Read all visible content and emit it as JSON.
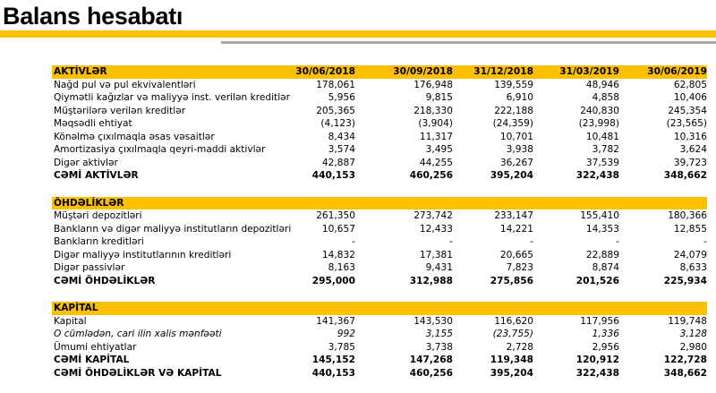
{
  "title": "Balans hesabatı",
  "colors": {
    "accent": "#fcc000",
    "rule": "#a6a6a6"
  },
  "columns": [
    "30/06/2018",
    "30/09/2018",
    "31/12/2018",
    "31/03/2019",
    "30/06/2019"
  ],
  "sections": [
    {
      "header": "AKTİVLƏR",
      "show_dates": true,
      "rows": [
        {
          "label": "Nağd pul və pul ekvivalentləri",
          "values": [
            "178,061",
            "176,948",
            "139,559",
            "48,946",
            "62,805"
          ]
        },
        {
          "label": "Qiymətli kağızlar və maliyyə inst. verilən kreditlər",
          "values": [
            "5,956",
            "9,815",
            "6,910",
            "4,858",
            "10,406"
          ]
        },
        {
          "label": "Müştərilərə verilən kreditlər",
          "values": [
            "205,365",
            "218,330",
            "222,188",
            "240,830",
            "245,354"
          ]
        },
        {
          "label": "Məqsədli ehtiyat",
          "values": [
            "(4,123)",
            "(3,904)",
            "(24,359)",
            "(23,998)",
            "(23,565)"
          ]
        },
        {
          "label": "Könəlmə çıxılmaqla əsas vəsaitlər",
          "values": [
            "8,434",
            "11,317",
            "10,701",
            "10,481",
            "10,316"
          ]
        },
        {
          "label": "Amortizasiya çıxılmaqla qeyri-maddi aktivlər",
          "values": [
            "3,574",
            "3,495",
            "3,938",
            "3,782",
            "3,624"
          ]
        },
        {
          "label": "Digər aktivlər",
          "values": [
            "42,887",
            "44,255",
            "36,267",
            "37,539",
            "39,723"
          ]
        },
        {
          "label": "CƏMİ AKTİVLƏR",
          "values": [
            "440,153",
            "460,256",
            "395,204",
            "322,438",
            "348,662"
          ],
          "style": "bold"
        }
      ]
    },
    {
      "header": "ÖHDƏLİKLƏR",
      "rows": [
        {
          "label": "Müştəri depozitləri",
          "values": [
            "261,350",
            "273,742",
            "233,147",
            "155,410",
            "180,366"
          ]
        },
        {
          "label": "Bankların və digər maliyyə institutların depozitləri",
          "values": [
            "10,657",
            "12,433",
            "14,221",
            "14,353",
            "12,855"
          ]
        },
        {
          "label": "Bankların kreditləri",
          "values": [
            "-",
            "-",
            "-",
            "-",
            "-"
          ]
        },
        {
          "label": "Digər maliyyə institutlarının kreditləri",
          "values": [
            "14,832",
            "17,381",
            "20,665",
            "22,889",
            "24,079"
          ]
        },
        {
          "label": "Digər passivlər",
          "values": [
            "8,163",
            "9,431",
            "7,823",
            "8,874",
            "8,633"
          ]
        },
        {
          "label": "CƏMİ ÖHDƏLİKLƏR",
          "values": [
            "295,000",
            "312,988",
            "275,856",
            "201,526",
            "225,934"
          ],
          "style": "bold"
        }
      ]
    },
    {
      "header": "KAPİTAL",
      "rows": [
        {
          "label": "Kapital",
          "values": [
            "141,367",
            "143,530",
            "116,620",
            "117,956",
            "119,748"
          ]
        },
        {
          "label": "O cümlədən, cari ilin xalis mənfəəti",
          "values": [
            "992",
            "3,155",
            "(23,755)",
            "1,336",
            "3,128"
          ],
          "style": "ital"
        },
        {
          "label": "Ümumi ehtiyatlar",
          "values": [
            "3,785",
            "3,738",
            "2,728",
            "2,956",
            "2,980"
          ]
        },
        {
          "label": "CƏMİ KAPİTAL",
          "values": [
            "145,152",
            "147,268",
            "119,348",
            "120,912",
            "122,728"
          ],
          "style": "bold"
        },
        {
          "label": "CƏMİ ÖHDƏLİKLƏR VƏ KAPİTAL",
          "values": [
            "440,153",
            "460,256",
            "395,204",
            "322,438",
            "348,662"
          ],
          "style": "bold"
        }
      ]
    }
  ]
}
